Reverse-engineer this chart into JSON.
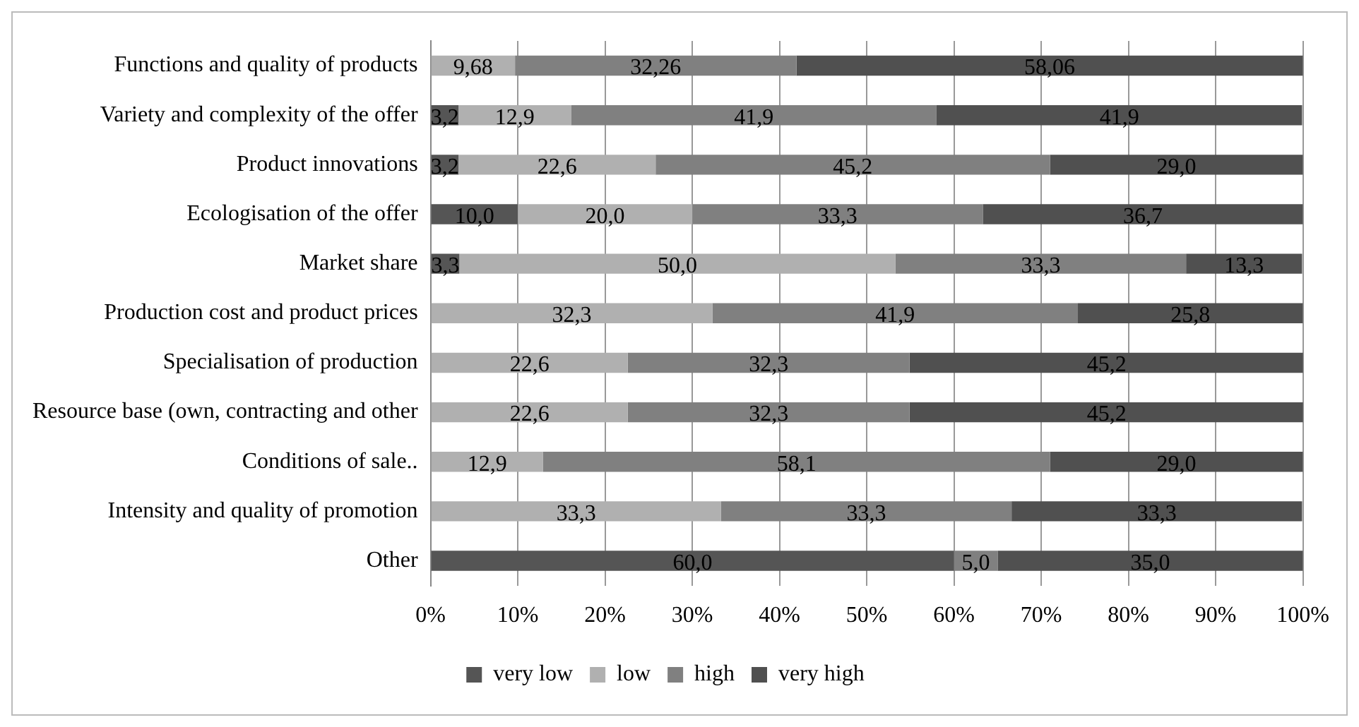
{
  "chart_data": {
    "type": "bar",
    "orientation": "horizontal",
    "stacked": true,
    "categories": [
      "Functions and quality of products",
      "Variety and complexity of the offer",
      "Product innovations",
      "Ecologisation of the offer",
      "Market share",
      "Production cost and product prices",
      "Specialisation of production",
      "Resource base (own, contracting and other",
      "Conditions of sale..",
      "Intensity and quality of promotion",
      "Other"
    ],
    "series": [
      {
        "name": "very low",
        "color": "#555555",
        "values": [
          0,
          3.2,
          3.2,
          10.0,
          3.3,
          0,
          0,
          0,
          0,
          0,
          60.0
        ],
        "value_labels": [
          null,
          "3,2",
          "3,2",
          "10,0",
          "3,3",
          null,
          null,
          null,
          null,
          null,
          "60,0"
        ]
      },
      {
        "name": "low",
        "color": "#b0b0b0",
        "values": [
          9.68,
          12.9,
          22.6,
          20.0,
          50.0,
          32.3,
          22.6,
          22.6,
          12.9,
          33.3,
          0
        ],
        "value_labels": [
          "9,68",
          "12,9",
          "22,6",
          "20,0",
          "50,0",
          "32,3",
          "22,6",
          "22,6",
          "12,9",
          "33,3",
          null
        ]
      },
      {
        "name": "high",
        "color": "#808080",
        "values": [
          32.26,
          41.9,
          45.2,
          33.3,
          33.3,
          41.9,
          32.3,
          32.3,
          58.1,
          33.3,
          5.0
        ],
        "value_labels": [
          "32,26",
          "41,9",
          "45,2",
          "33,3",
          "33,3",
          "41,9",
          "32,3",
          "32,3",
          "58,1",
          "33,3",
          "5,0"
        ]
      },
      {
        "name": "very high",
        "color": "#505050",
        "values": [
          58.06,
          41.9,
          29.0,
          36.7,
          13.3,
          25.8,
          45.2,
          45.2,
          29.0,
          33.3,
          35.0
        ],
        "value_labels": [
          "58,06",
          "41,9",
          "29,0",
          "36,7",
          "13,3",
          "25,8",
          "45,2",
          "45,2",
          "29,0",
          "33,3",
          "35,0"
        ]
      }
    ],
    "xlim": [
      0,
      100
    ],
    "xticks": [
      {
        "value": 0,
        "label": "0%"
      },
      {
        "value": 10,
        "label": "10%"
      },
      {
        "value": 20,
        "label": "20%"
      },
      {
        "value": 30,
        "label": "30%"
      },
      {
        "value": 40,
        "label": "40%"
      },
      {
        "value": 50,
        "label": "50%"
      },
      {
        "value": 60,
        "label": "60%"
      },
      {
        "value": 70,
        "label": "70%"
      },
      {
        "value": 80,
        "label": "80%"
      },
      {
        "value": 90,
        "label": "90%"
      },
      {
        "value": 100,
        "label": "100%"
      }
    ],
    "grid": "x",
    "legend": "bottom"
  }
}
